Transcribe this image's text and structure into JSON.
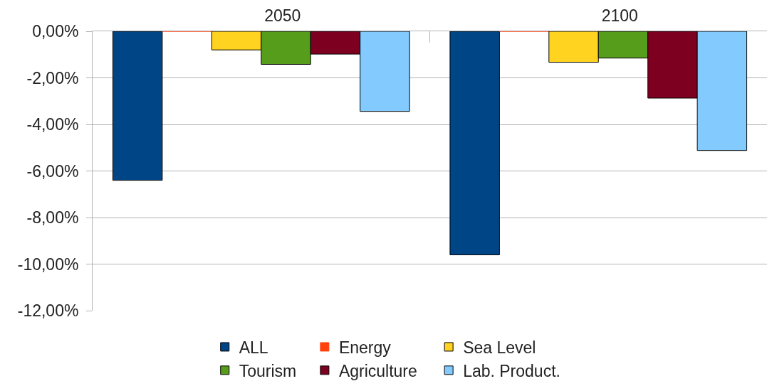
{
  "chart_data": {
    "type": "bar",
    "categories": [
      "2050",
      "2100"
    ],
    "series": [
      {
        "name": "ALL",
        "color": "#004586",
        "values": [
          -6.4,
          -9.6
        ]
      },
      {
        "name": "Energy",
        "color": "#ff420e",
        "values": [
          0,
          0
        ]
      },
      {
        "name": "Sea Level",
        "color": "#ffd320",
        "values": [
          -0.8,
          -1.33
        ]
      },
      {
        "name": "Tourism",
        "color": "#579d1c",
        "values": [
          -1.42,
          -1.15
        ]
      },
      {
        "name": "Agriculture",
        "color": "#7e0021",
        "values": [
          -0.98,
          -2.87
        ]
      },
      {
        "name": "Lab. Product.",
        "color": "#83caff",
        "values": [
          -3.44,
          -5.12
        ]
      }
    ],
    "ylim": [
      -12,
      0
    ],
    "yticks": [
      {
        "value": -12,
        "label": "-12,00%"
      },
      {
        "value": -10,
        "label": "-10,00%"
      },
      {
        "value": -8,
        "label": "-8,00%"
      },
      {
        "value": -6,
        "label": "-6,00%"
      },
      {
        "value": -4,
        "label": "-4,00%"
      },
      {
        "value": -2,
        "label": "-2,00%"
      },
      {
        "value": 0,
        "label": "0,00%"
      }
    ],
    "grid": "y",
    "legend": "bottom"
  }
}
